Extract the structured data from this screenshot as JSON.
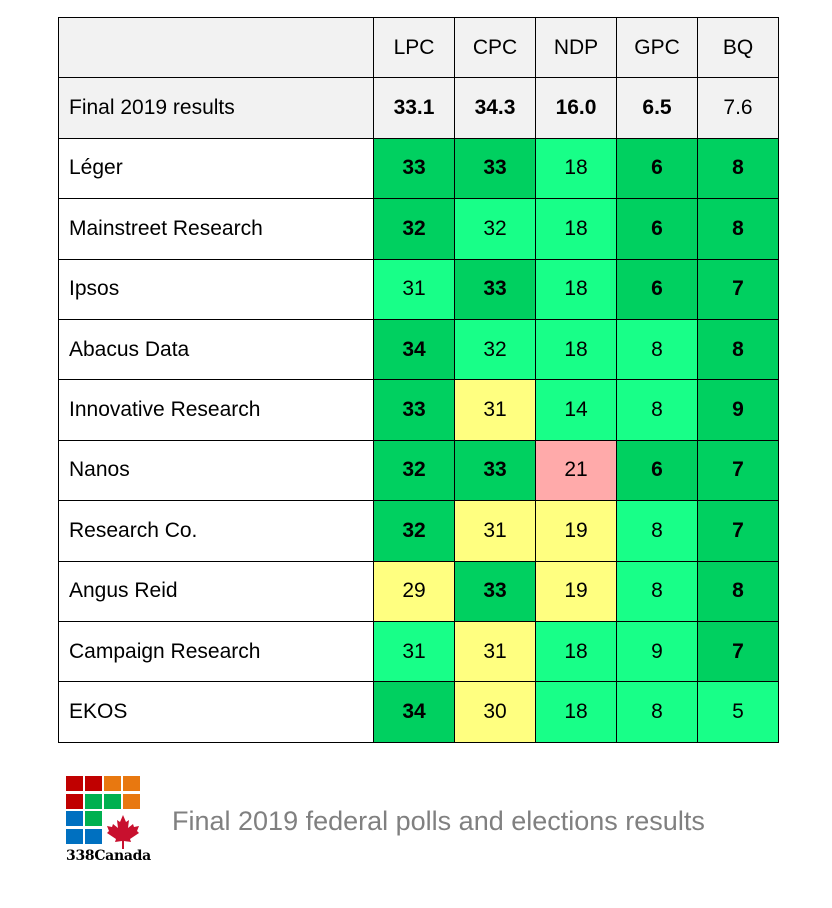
{
  "chart_data": {
    "type": "table",
    "columns": [
      "",
      "LPC",
      "CPC",
      "NDP",
      "GPC",
      "BQ"
    ],
    "final_row": {
      "label": "Final 2019 results",
      "values": [
        "33.1",
        "34.3",
        "16.0",
        "6.5",
        "7.6"
      ],
      "bold": [
        true,
        true,
        true,
        true,
        false
      ]
    },
    "rows": [
      {
        "label": "Léger",
        "values": [
          33,
          33,
          18,
          6,
          8
        ],
        "levels": [
          "d",
          "d",
          "l",
          "d",
          "d"
        ]
      },
      {
        "label": "Mainstreet Research",
        "values": [
          32,
          32,
          18,
          6,
          8
        ],
        "levels": [
          "d",
          "l",
          "l",
          "d",
          "d"
        ]
      },
      {
        "label": "Ipsos",
        "values": [
          31,
          33,
          18,
          6,
          7
        ],
        "levels": [
          "l",
          "d",
          "l",
          "d",
          "d"
        ]
      },
      {
        "label": "Abacus Data",
        "values": [
          34,
          32,
          18,
          8,
          8
        ],
        "levels": [
          "d",
          "l",
          "l",
          "l",
          "d"
        ]
      },
      {
        "label": "Innovative Research",
        "values": [
          33,
          31,
          14,
          8,
          9
        ],
        "levels": [
          "d",
          "y",
          "l",
          "l",
          "d"
        ]
      },
      {
        "label": "Nanos",
        "values": [
          32,
          33,
          21,
          6,
          7
        ],
        "levels": [
          "d",
          "d",
          "p",
          "d",
          "d"
        ]
      },
      {
        "label": "Research Co.",
        "values": [
          32,
          31,
          19,
          8,
          7
        ],
        "levels": [
          "d",
          "y",
          "y",
          "l",
          "d"
        ]
      },
      {
        "label": "Angus Reid",
        "values": [
          29,
          33,
          19,
          8,
          8
        ],
        "levels": [
          "y",
          "d",
          "y",
          "l",
          "d"
        ]
      },
      {
        "label": "Campaign Research",
        "values": [
          31,
          31,
          18,
          9,
          7
        ],
        "levels": [
          "l",
          "y",
          "l",
          "l",
          "d"
        ]
      },
      {
        "label": "EKOS",
        "values": [
          34,
          30,
          18,
          8,
          5
        ],
        "levels": [
          "d",
          "y",
          "l",
          "l",
          "l"
        ]
      }
    ],
    "level_colors": {
      "d": "#00d060",
      "l": "#18ff88",
      "y": "#ffff80",
      "p": "#ffaaaa"
    }
  },
  "footer": {
    "logo_text": "338Canada",
    "caption": "Final 2019 federal polls and elections results"
  }
}
